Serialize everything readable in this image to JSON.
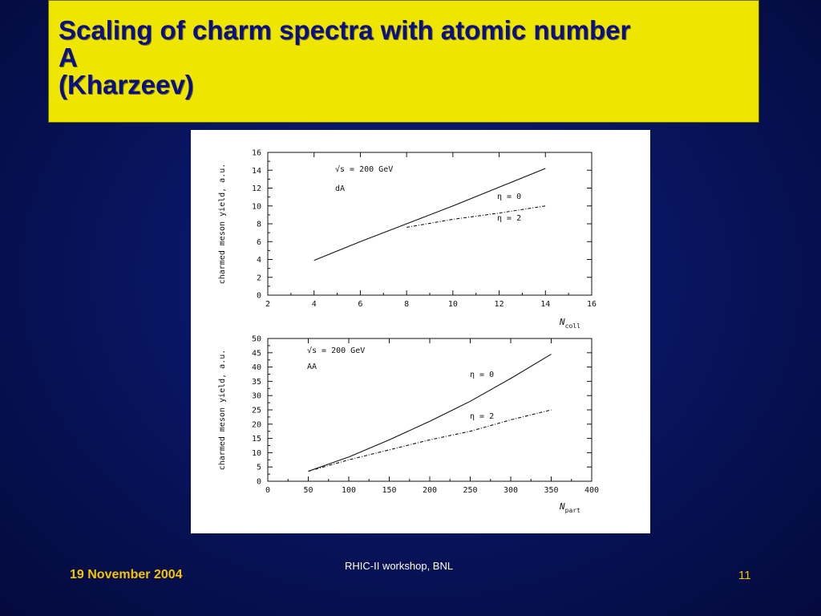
{
  "slide": {
    "title_lines": [
      "Scaling of charm spectra with atomic number",
      "A",
      "(Kharzeev)"
    ],
    "footer_date": "19 November 2004",
    "footer_center": "RHIC-II workshop, BNL",
    "page_number": "11"
  },
  "chart_data": [
    {
      "type": "line",
      "title": "",
      "xlabel": "N_coll",
      "xlabel_main": "N",
      "xlabel_sub": "coll",
      "ylabel": "charmed meson yield, a.u.",
      "xlim": [
        2,
        16
      ],
      "ylim": [
        0,
        16
      ],
      "xticks": [
        2,
        4,
        6,
        8,
        10,
        12,
        14,
        16
      ],
      "yticks": [
        0,
        2,
        4,
        6,
        8,
        10,
        12,
        14,
        16
      ],
      "annotations": [
        "√s = 200 GeV",
        "dA"
      ],
      "series": [
        {
          "name": "η = 0",
          "style": "solid",
          "x": [
            4,
            6,
            8,
            10,
            12,
            14
          ],
          "y": [
            3.9,
            6.0,
            8.0,
            10.0,
            12.1,
            14.2
          ]
        },
        {
          "name": "η = 2",
          "style": "dashed",
          "x": [
            8,
            10,
            12,
            14
          ],
          "y": [
            7.6,
            8.5,
            9.2,
            10.0
          ]
        }
      ]
    },
    {
      "type": "line",
      "title": "",
      "xlabel": "N_part",
      "xlabel_main": "N",
      "xlabel_sub": "part",
      "ylabel": "charmed meson yield, a.u.",
      "xlim": [
        0,
        400
      ],
      "ylim": [
        0,
        50
      ],
      "xticks": [
        0,
        50,
        100,
        150,
        200,
        250,
        300,
        350,
        400
      ],
      "yticks": [
        0,
        5,
        10,
        15,
        20,
        25,
        30,
        35,
        40,
        45,
        50
      ],
      "annotations": [
        "√s = 200 GeV",
        "AA"
      ],
      "series": [
        {
          "name": "η = 0",
          "style": "solid",
          "x": [
            50,
            100,
            150,
            200,
            250,
            300,
            350
          ],
          "y": [
            3.5,
            8.5,
            14.5,
            21.0,
            28.0,
            36.0,
            44.5
          ]
        },
        {
          "name": "η = 2",
          "style": "dashed",
          "x": [
            50,
            100,
            150,
            200,
            250,
            300,
            350
          ],
          "y": [
            3.5,
            7.5,
            11.0,
            14.5,
            17.5,
            21.5,
            25.0
          ]
        }
      ]
    }
  ]
}
